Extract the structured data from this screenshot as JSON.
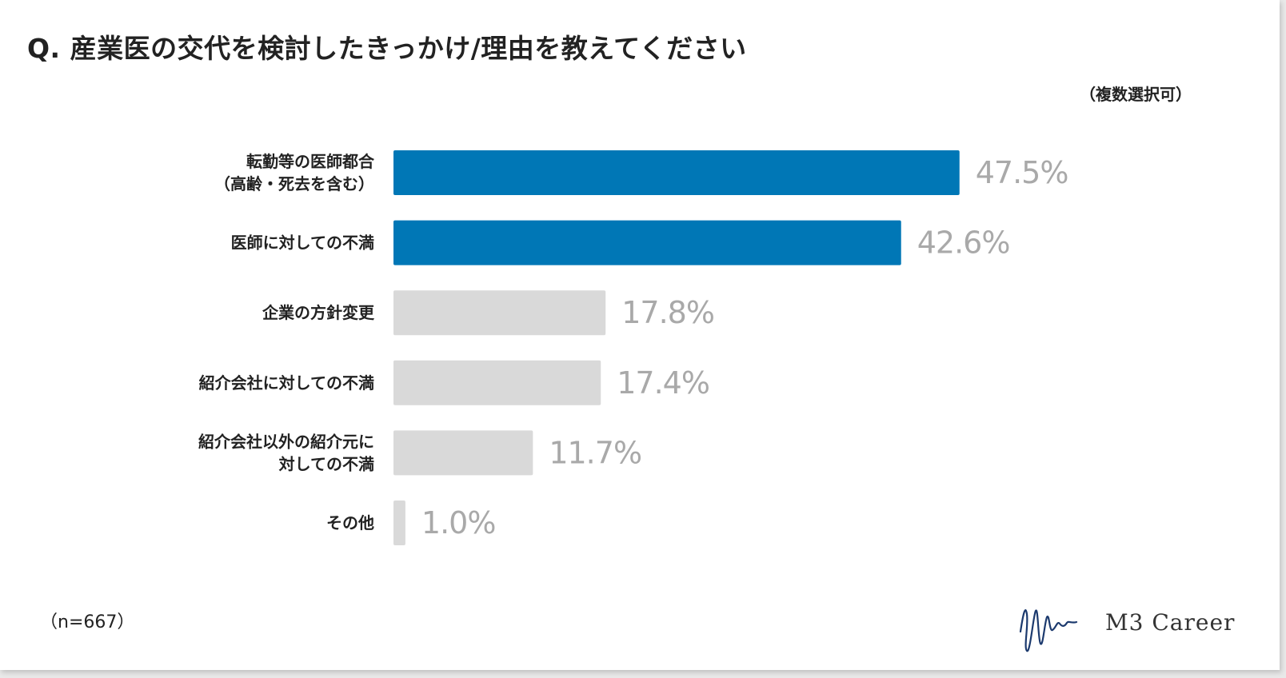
{
  "title": "Q. 産業医の交代を検討したきっかけ/理由を教えてください",
  "note": "（複数選択可）",
  "sample": "（n=667）",
  "brand": "M3 Career",
  "colors": {
    "highlight": "#0077b6",
    "muted": "#d9d9d9",
    "value_text": "#a9a9a9"
  },
  "chart_data": {
    "type": "bar",
    "orientation": "horizontal",
    "categories": [
      [
        "転勤等の医師都合",
        "（高齢・死去を含む）"
      ],
      [
        "医師に対しての不満"
      ],
      [
        "企業の方針変更"
      ],
      [
        "紹介会社に対しての不満"
      ],
      [
        "紹介会社以外の紹介元に",
        "対しての不満"
      ],
      [
        "その他"
      ]
    ],
    "values": [
      47.5,
      42.6,
      17.8,
      17.4,
      11.7,
      1.0
    ],
    "value_labels": [
      "47.5%",
      "42.6%",
      "17.8%",
      "17.4%",
      "11.7%",
      "1.0%"
    ],
    "highlighted": [
      true,
      true,
      false,
      false,
      false,
      false
    ],
    "unit": "%",
    "grid": false,
    "legend": false
  }
}
